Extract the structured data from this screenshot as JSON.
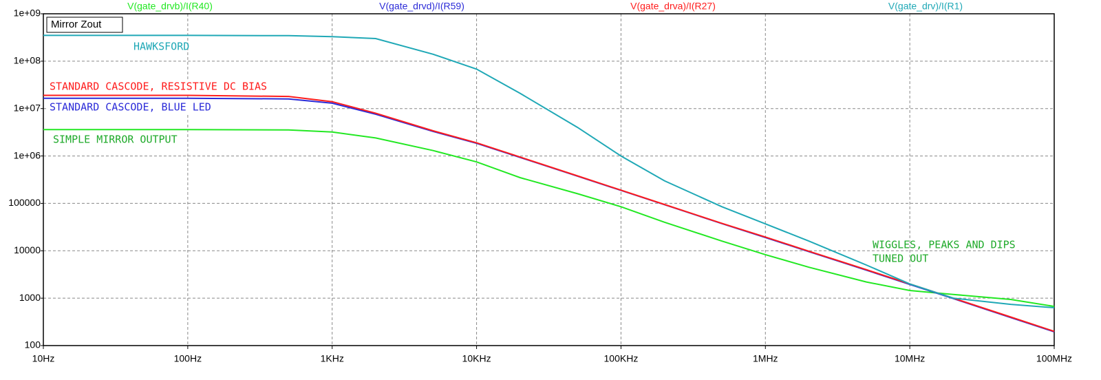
{
  "chart_data": {
    "type": "line",
    "title": "Mirror Zout",
    "xlog": true,
    "ylog": true,
    "grid": true,
    "x": [
      10,
      100,
      500,
      1000,
      2000,
      5000,
      10000,
      20000,
      50000,
      100000,
      200000,
      500000,
      1000000,
      2000000,
      5000000,
      10000000,
      20000000,
      50000000,
      100000000
    ],
    "series": [
      {
        "name": "V(gate_drvb)/I(R40)",
        "color": "#22e822",
        "values": [
          3600000,
          3600000,
          3550000,
          3200000,
          2400000,
          1300000,
          750000,
          350000,
          160000,
          85000,
          40000,
          16000,
          8300,
          4500,
          2200,
          1450,
          1200,
          940,
          670
        ]
      },
      {
        "name": "V(gate_drvd)/I(R59)",
        "color": "#2b2bd8",
        "values": [
          16500000,
          16500000,
          16000000,
          13000000,
          7600000,
          3300000,
          1850000,
          930000,
          375000,
          188000,
          94000,
          37500,
          19000,
          9600,
          3900,
          1950,
          980,
          390,
          195
        ]
      },
      {
        "name": "V(gate_drva)/I(R27)",
        "color": "#ff1c1c",
        "values": [
          19000000,
          19000000,
          18000000,
          14000000,
          8000000,
          3400000,
          1900000,
          950000,
          380000,
          190000,
          95000,
          38000,
          19500,
          9800,
          4000,
          2000,
          1000,
          400,
          200
        ]
      },
      {
        "name": "V(gate_drv)/I(R1)",
        "color": "#1fa8b6",
        "values": [
          350000000,
          350000000,
          345000000,
          330000000,
          300000000,
          140000000,
          68000000,
          21000000,
          4000000,
          1000000,
          300000,
          85000,
          37000,
          16000,
          5000,
          2000,
          1000,
          740,
          630
        ]
      }
    ],
    "xlim": [
      10,
      100000000
    ],
    "ylim": [
      100,
      1000000000
    ],
    "xticks": [
      {
        "value": 10,
        "label": "10Hz"
      },
      {
        "value": 100,
        "label": "100Hz"
      },
      {
        "value": 1000,
        "label": "1KHz"
      },
      {
        "value": 10000,
        "label": "10KHz"
      },
      {
        "value": 100000,
        "label": "100KHz"
      },
      {
        "value": 1000000,
        "label": "1MHz"
      },
      {
        "value": 10000000,
        "label": "10MHz"
      },
      {
        "value": 100000000,
        "label": "100MHz"
      }
    ],
    "yticks": [
      100,
      1000,
      10000,
      100000,
      {
        "value": 1000000,
        "label": "1e+06"
      },
      {
        "value": 10000000,
        "label": "1e+07"
      },
      {
        "value": 100000000,
        "label": "1e+08"
      },
      {
        "value": 1000000000,
        "label": "1e+09"
      }
    ],
    "annotations": [
      {
        "text": "HAWKSFORD",
        "color": "#1fa8b6"
      },
      {
        "text": "STANDARD CASCODE, RESISTIVE DC BIAS",
        "color": "#ff1c1c"
      },
      {
        "text": "STANDARD CASCODE, BLUE LED",
        "color": "#2b2bd8"
      },
      {
        "text": "SIMPLE MIRROR OUTPUT",
        "color": "#1faa2a"
      },
      {
        "text": "WIGGLES, PEAKS AND DIPS",
        "color": "#1faa2a"
      },
      {
        "text": "TUNED OUT",
        "color": "#1faa2a"
      }
    ]
  }
}
